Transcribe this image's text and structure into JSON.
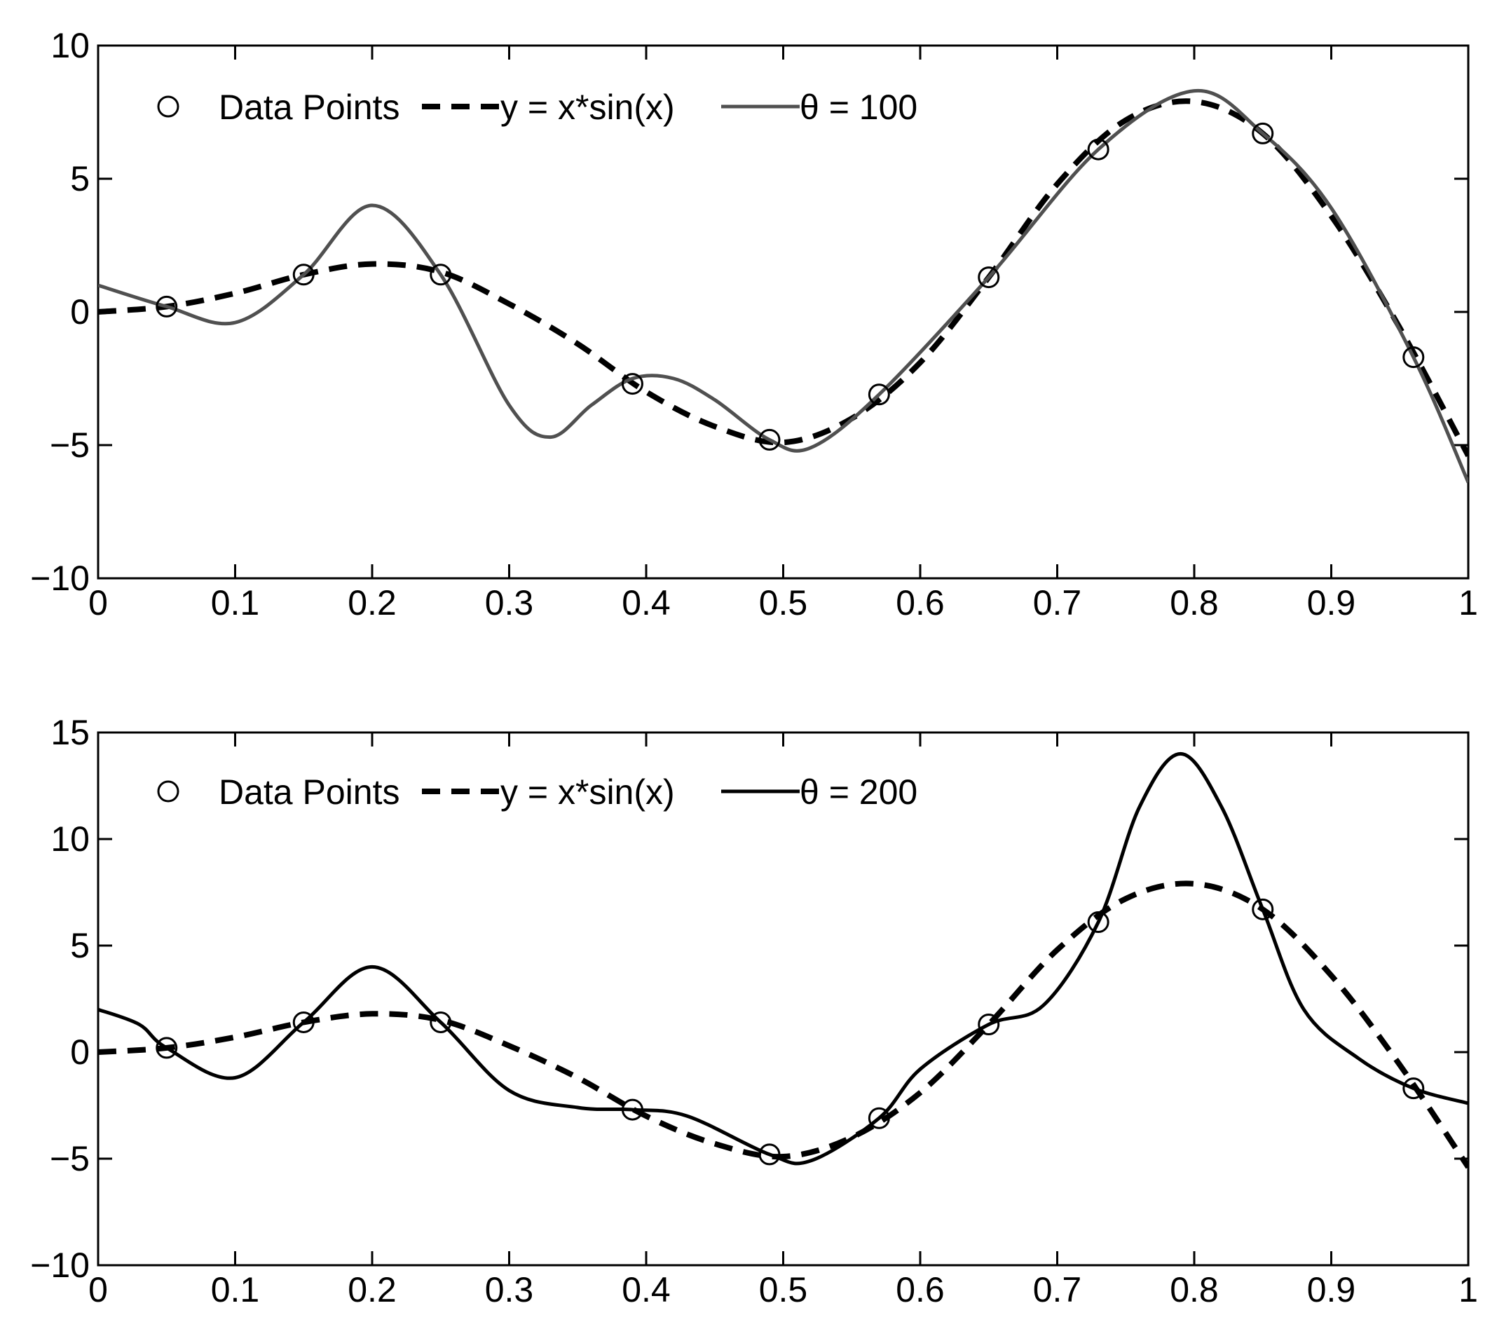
{
  "chart_data": [
    {
      "type": "line",
      "panel": "top",
      "xlim": [
        0,
        1
      ],
      "ylim": [
        -10,
        10
      ],
      "xticks": [
        "0",
        "0.1",
        "0.2",
        "0.3",
        "0.4",
        "0.5",
        "0.6",
        "0.7",
        "0.8",
        "0.9",
        "1"
      ],
      "yticks": [
        "−10",
        "−5",
        "0",
        "5",
        "10"
      ],
      "grid": false,
      "legend_position": "top-left",
      "series": [
        {
          "name": "Data Points",
          "style": "markers",
          "marker": "circle",
          "color": "#000000",
          "x": [
            0.05,
            0.15,
            0.25,
            0.39,
            0.49,
            0.57,
            0.65,
            0.73,
            0.85,
            0.96
          ],
          "y": [
            0.2,
            1.4,
            1.4,
            -2.7,
            -4.8,
            -3.1,
            1.3,
            6.1,
            6.7,
            -1.7
          ]
        },
        {
          "name": "y = x*sin(x)",
          "style": "dashed",
          "color": "#000000",
          "x": [
            0,
            0.05,
            0.1,
            0.15,
            0.2,
            0.25,
            0.3,
            0.35,
            0.4,
            0.45,
            0.5,
            0.55,
            0.6,
            0.65,
            0.7,
            0.75,
            0.8,
            0.85,
            0.9,
            0.95,
            1.0
          ],
          "y": [
            0,
            0.2,
            0.7,
            1.4,
            1.8,
            1.5,
            0.3,
            -1.2,
            -3.0,
            -4.3,
            -4.9,
            -4.0,
            -1.9,
            1.3,
            4.8,
            7.2,
            7.9,
            6.7,
            3.6,
            -0.6,
            -5.4
          ]
        },
        {
          "name": "θ = 100",
          "style": "solid",
          "color": "#505050",
          "x": [
            0,
            0.05,
            0.1,
            0.15,
            0.2,
            0.25,
            0.3,
            0.33,
            0.36,
            0.39,
            0.42,
            0.45,
            0.49,
            0.52,
            0.57,
            0.65,
            0.73,
            0.8,
            0.85,
            0.9,
            0.96,
            1.0
          ],
          "y": [
            1.0,
            0.2,
            -0.4,
            1.4,
            4.0,
            1.4,
            -3.5,
            -4.7,
            -3.5,
            -2.5,
            -2.5,
            -3.3,
            -4.8,
            -5.1,
            -3.1,
            1.3,
            6.1,
            8.3,
            6.7,
            3.9,
            -1.7,
            -6.4
          ]
        }
      ]
    },
    {
      "type": "line",
      "panel": "bottom",
      "xlim": [
        0,
        1
      ],
      "ylim": [
        -10,
        15
      ],
      "xticks": [
        "0",
        "0.1",
        "0.2",
        "0.3",
        "0.4",
        "0.5",
        "0.6",
        "0.7",
        "0.8",
        "0.9",
        "1"
      ],
      "yticks": [
        "−10",
        "−5",
        "0",
        "5",
        "10",
        "15"
      ],
      "grid": false,
      "legend_position": "top-left",
      "series": [
        {
          "name": "Data Points",
          "style": "markers",
          "marker": "circle",
          "color": "#000000",
          "x": [
            0.05,
            0.15,
            0.25,
            0.39,
            0.49,
            0.57,
            0.65,
            0.73,
            0.85,
            0.96
          ],
          "y": [
            0.2,
            1.4,
            1.4,
            -2.7,
            -4.8,
            -3.1,
            1.3,
            6.1,
            6.7,
            -1.7
          ]
        },
        {
          "name": "y = x*sin(x)",
          "style": "dashed",
          "color": "#000000",
          "x": [
            0,
            0.05,
            0.1,
            0.15,
            0.2,
            0.25,
            0.3,
            0.35,
            0.4,
            0.45,
            0.5,
            0.55,
            0.6,
            0.65,
            0.7,
            0.75,
            0.8,
            0.85,
            0.9,
            0.95,
            1.0
          ],
          "y": [
            0,
            0.2,
            0.7,
            1.4,
            1.8,
            1.5,
            0.3,
            -1.2,
            -3.0,
            -4.3,
            -4.9,
            -4.0,
            -1.9,
            1.3,
            4.8,
            7.2,
            7.9,
            6.7,
            3.6,
            -0.6,
            -5.4
          ]
        },
        {
          "name": "θ = 200",
          "style": "solid",
          "color": "#000000",
          "x": [
            0,
            0.03,
            0.05,
            0.1,
            0.15,
            0.2,
            0.25,
            0.3,
            0.35,
            0.39,
            0.43,
            0.49,
            0.52,
            0.57,
            0.6,
            0.65,
            0.69,
            0.73,
            0.76,
            0.79,
            0.82,
            0.85,
            0.88,
            0.92,
            0.96,
            1.0
          ],
          "y": [
            2.0,
            1.3,
            0.2,
            -1.2,
            1.4,
            4.0,
            1.4,
            -1.8,
            -2.6,
            -2.7,
            -3.0,
            -4.8,
            -5.1,
            -3.1,
            -0.8,
            1.3,
            2.2,
            6.1,
            11.5,
            14.0,
            11.5,
            6.7,
            2.0,
            -0.3,
            -1.7,
            -2.4
          ]
        }
      ]
    }
  ],
  "legend_symbols": {
    "circle": "○"
  }
}
